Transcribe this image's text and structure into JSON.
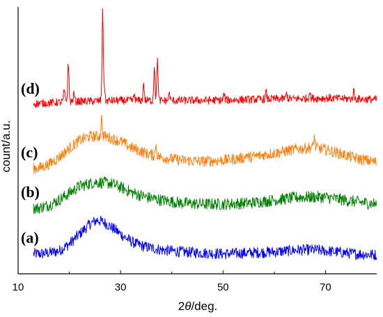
{
  "chart_data": {
    "type": "line",
    "title": "",
    "xlabel": {
      "prefix": "2",
      "symbol": "θ",
      "suffix": "/deg."
    },
    "ylabel": "count/a.u.",
    "xlim": [
      10,
      80
    ],
    "x_ticks": [
      10,
      30,
      50,
      70
    ],
    "x_tick_labels": [
      "10",
      "30",
      "50",
      "70"
    ],
    "y_ticks_shown": false,
    "grid": false,
    "legend": "none",
    "series": [
      {
        "label": "(a)",
        "color": "#0000ff",
        "baseline": 1.0,
        "noise": 0.28,
        "x": [
          13,
          14,
          16,
          18,
          20,
          22,
          24,
          25.5,
          27,
          29,
          31,
          33,
          35,
          38,
          42,
          46,
          50,
          55,
          60,
          65,
          68,
          72,
          76,
          80
        ],
        "y": [
          1.0,
          1.0,
          1.05,
          1.15,
          1.5,
          2.0,
          2.5,
          2.7,
          2.55,
          2.2,
          1.8,
          1.5,
          1.35,
          1.2,
          1.1,
          1.05,
          1.0,
          1.05,
          1.1,
          1.2,
          1.2,
          1.1,
          1.0,
          0.95
        ],
        "peaks": []
      },
      {
        "label": "(b)",
        "color": "#008000",
        "baseline": 3.3,
        "noise": 0.3,
        "x": [
          13,
          14,
          16,
          18,
          20,
          22,
          25,
          28,
          30,
          32,
          35,
          38,
          42,
          46,
          50,
          55,
          60,
          65,
          70,
          75,
          80
        ],
        "y": [
          3.3,
          3.3,
          3.45,
          3.7,
          4.05,
          4.4,
          4.6,
          4.55,
          4.35,
          4.1,
          3.85,
          3.7,
          3.55,
          3.5,
          3.5,
          3.55,
          3.7,
          3.85,
          3.85,
          3.65,
          3.5
        ],
        "peaks": []
      },
      {
        "label": "(c)",
        "color": "#ff7f0e",
        "baseline": 5.3,
        "noise": 0.28,
        "x": [
          13,
          14,
          16,
          18,
          20,
          22,
          24,
          27,
          30,
          32,
          35,
          38,
          42,
          46,
          50,
          55,
          60,
          64,
          68,
          72,
          76,
          80
        ],
        "y": [
          5.3,
          5.3,
          5.5,
          5.85,
          6.3,
          6.7,
          6.9,
          6.9,
          6.65,
          6.35,
          6.05,
          5.85,
          5.7,
          5.65,
          5.7,
          5.85,
          6.05,
          6.25,
          6.35,
          6.1,
          5.8,
          5.6
        ],
        "peaks": [
          [
            26.3,
            0.9
          ],
          [
            36.9,
            0.6
          ],
          [
            67.8,
            0.55
          ],
          [
            54.6,
            0.2
          ]
        ]
      },
      {
        "label": "(d)",
        "color": "#ff0000",
        "baseline": 8.5,
        "noise": 0.2,
        "x": [
          13,
          14,
          20,
          30,
          40,
          50,
          60,
          70,
          80
        ],
        "y": [
          8.55,
          8.55,
          8.65,
          8.7,
          8.7,
          8.72,
          8.78,
          8.82,
          8.75
        ],
        "peaks": [
          [
            19.0,
            0.6
          ],
          [
            19.8,
            2.0
          ],
          [
            26.5,
            4.4
          ],
          [
            34.5,
            0.9
          ],
          [
            36.6,
            1.8
          ],
          [
            37.2,
            2.1
          ],
          [
            26.8,
            0.8
          ],
          [
            20.9,
            0.4
          ],
          [
            32.7,
            0.3
          ],
          [
            39.5,
            0.4
          ],
          [
            66.9,
            0.35
          ],
          [
            75.5,
            0.4
          ],
          [
            58.4,
            0.35
          ],
          [
            50.2,
            0.3
          ],
          [
            62.4,
            0.3
          ]
        ]
      }
    ],
    "ylim": [
      0,
      13.4
    ]
  }
}
